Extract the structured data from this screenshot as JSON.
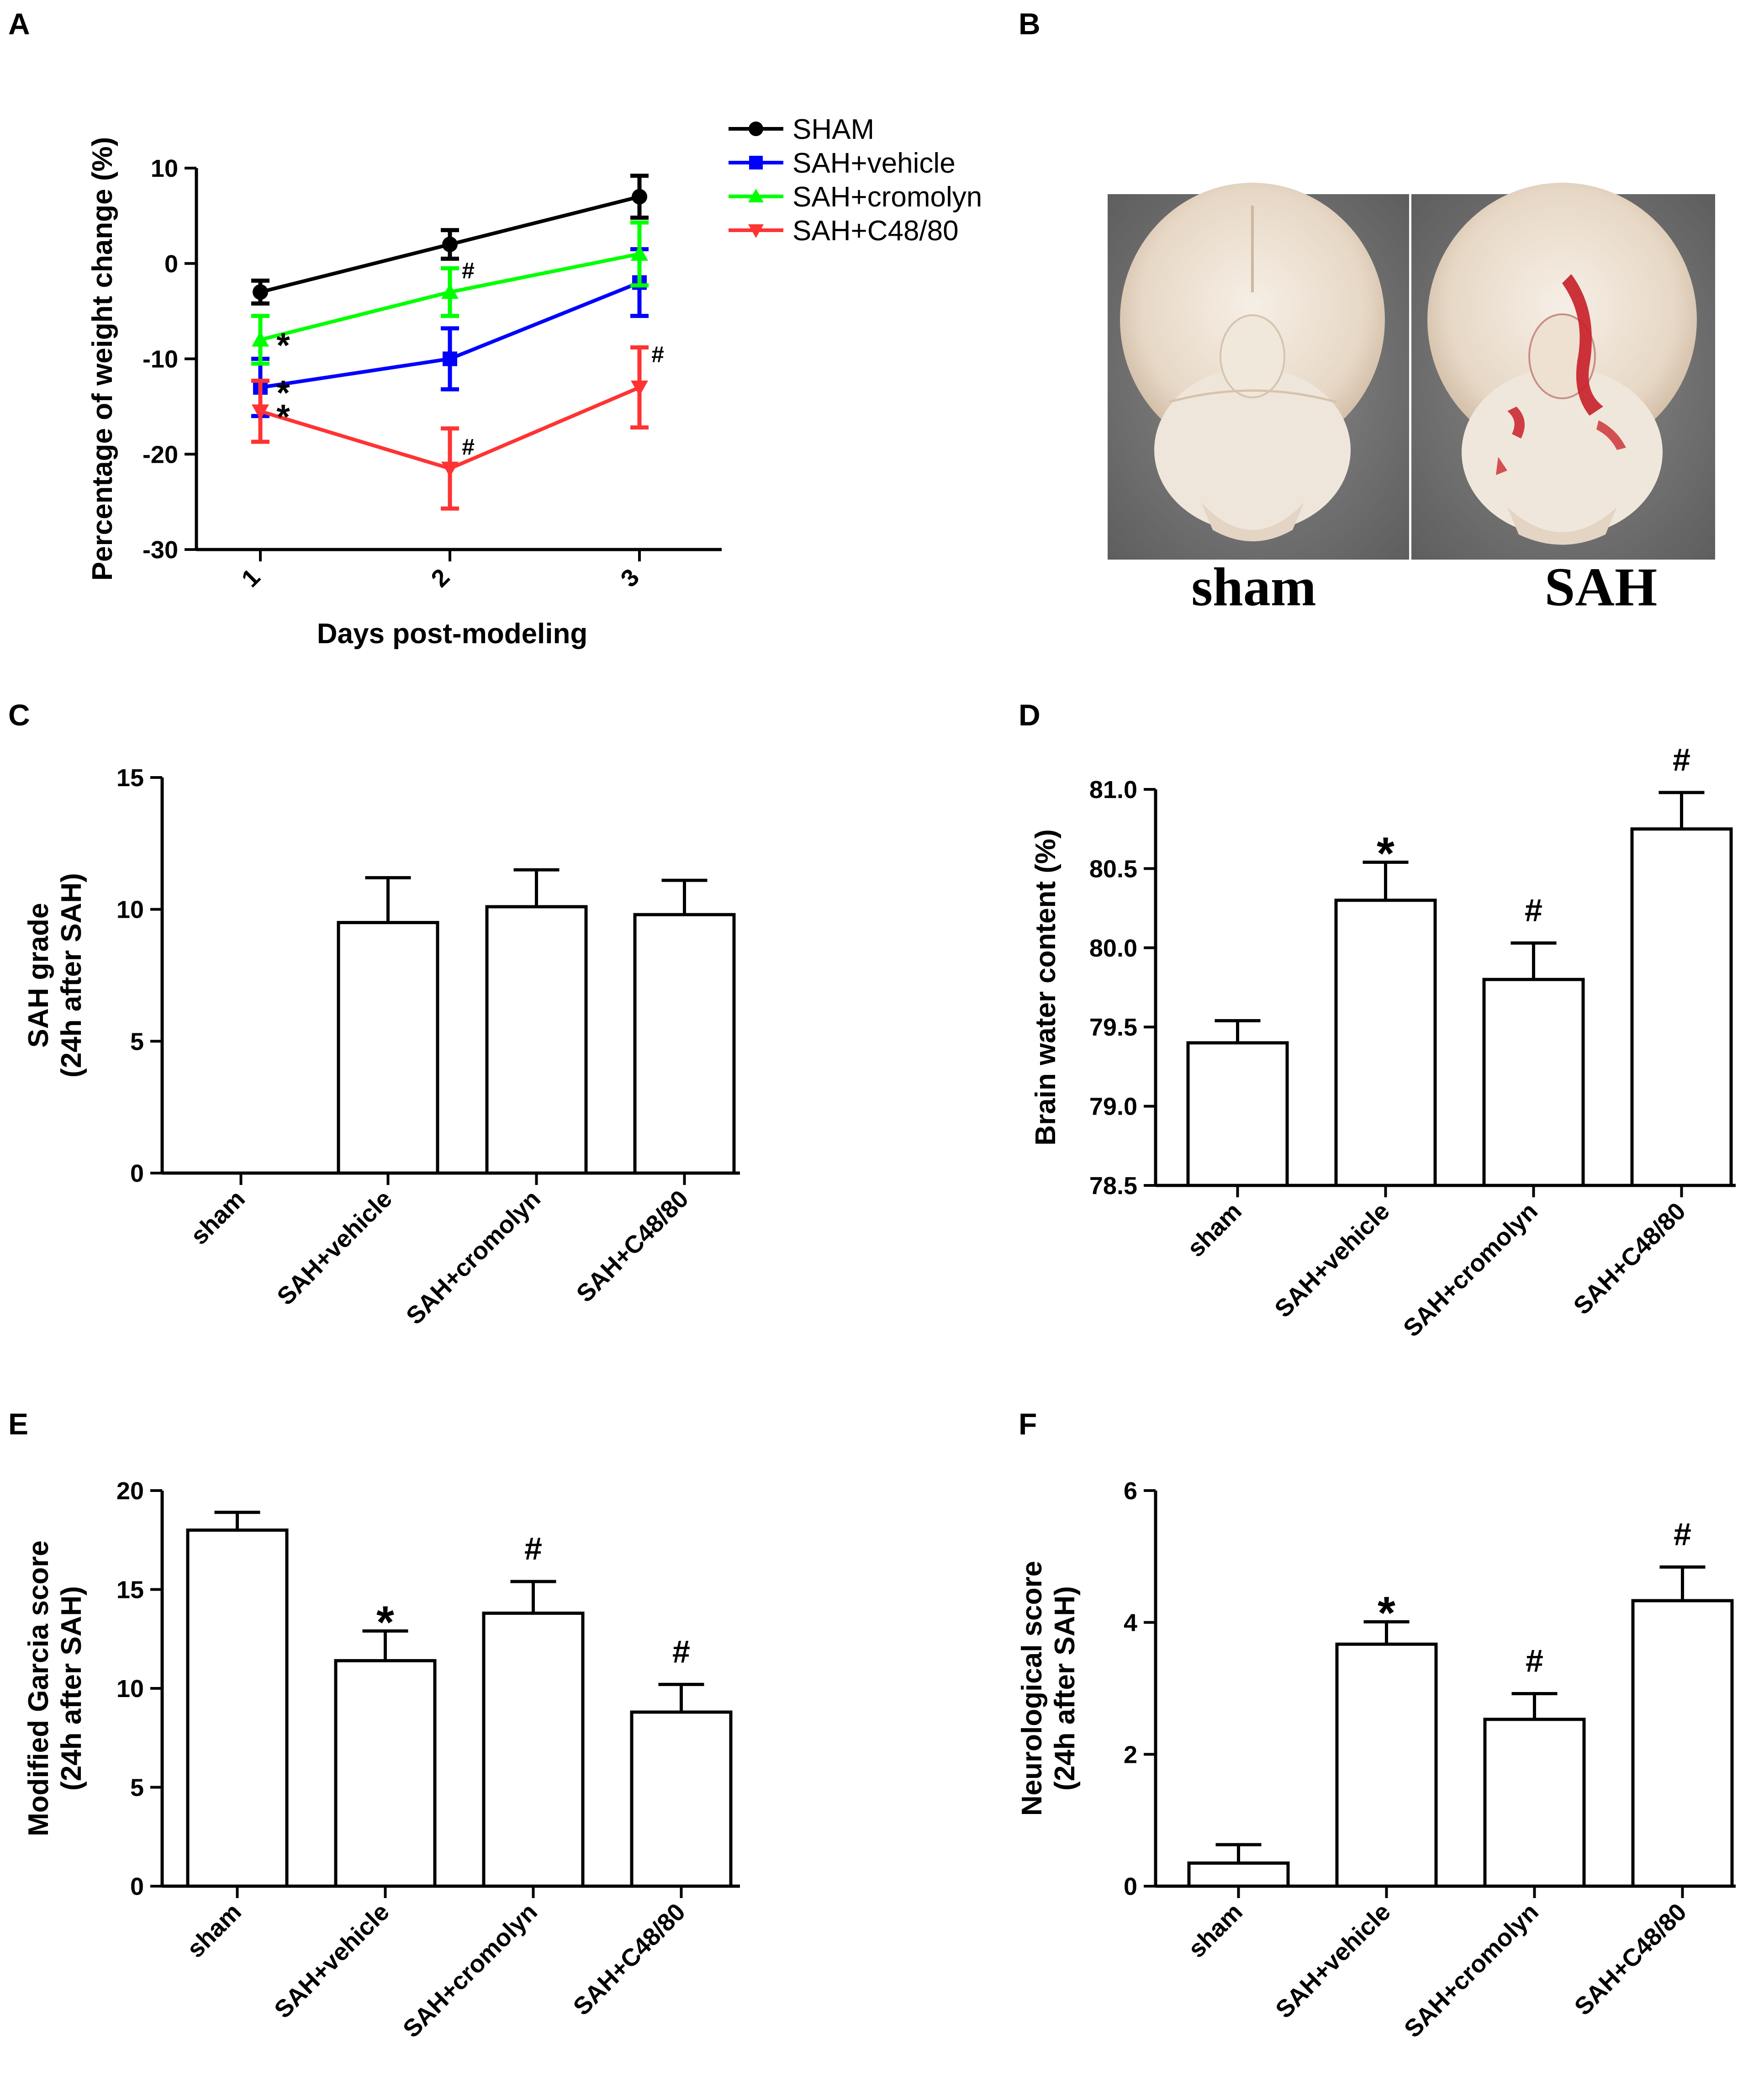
{
  "chart_data": [
    {
      "panel": "A",
      "type": "line",
      "xlabel": "Days post-modeling",
      "ylabel": "Percentage of weight change (%)",
      "categories": [
        "1",
        "2",
        "3"
      ],
      "ylim": [
        -30,
        10
      ],
      "yticks": [
        10,
        0,
        -10,
        -20,
        -30
      ],
      "grid": false,
      "legend": "top-right",
      "series": [
        {
          "name": "SHAM",
          "color": "#000000",
          "marker": "circle",
          "values": [
            -3,
            2,
            7
          ],
          "errors": [
            1.2,
            1.5,
            2.2
          ],
          "markers": [
            "",
            "",
            ""
          ]
        },
        {
          "name": "SAH+vehicle",
          "color": "#0000ff",
          "marker": "square",
          "values": [
            -13,
            -10,
            -2
          ],
          "errors": [
            3,
            3.2,
            3.5
          ],
          "markers": [
            "*",
            "",
            ""
          ]
        },
        {
          "name": "SAH+cromolyn",
          "color": "#00ff00",
          "marker": "triangle-up",
          "values": [
            -8,
            -3,
            1
          ],
          "errors": [
            2.5,
            2.5,
            3.3
          ],
          "markers": [
            "*",
            "#",
            ""
          ]
        },
        {
          "name": "SAH+C48/80",
          "color": "#ff3333",
          "marker": "triangle-down",
          "values": [
            -15.5,
            -21.5,
            -13
          ],
          "errors": [
            3.2,
            4.2,
            4.2
          ],
          "markers": [
            "*",
            "#",
            "#"
          ]
        }
      ]
    },
    {
      "panel": "C",
      "type": "bar",
      "categories": [
        "sham",
        "SAH+vehicle",
        "SAH+cromolyn",
        "SAH+C48/80"
      ],
      "values": [
        0,
        9.5,
        10.1,
        9.8
      ],
      "errors": [
        0,
        1.7,
        1.4,
        1.3
      ],
      "markers": [
        "",
        "",
        "",
        ""
      ],
      "ylabel": "SAH grade\n(24h after SAH)",
      "xlabel": "",
      "ylim": [
        0,
        15
      ],
      "yticks": [
        0,
        5,
        10,
        15
      ]
    },
    {
      "panel": "D",
      "type": "bar",
      "categories": [
        "sham",
        "SAH+vehicle",
        "SAH+cromolyn",
        "SAH+C48/80"
      ],
      "values": [
        79.4,
        80.3,
        79.8,
        80.75
      ],
      "errors": [
        0.14,
        0.24,
        0.23,
        0.23
      ],
      "markers": [
        "",
        "*",
        "#",
        "#"
      ],
      "ylabel": "Brain water content (%)",
      "xlabel": "",
      "ylim": [
        78.5,
        81.0
      ],
      "yticks": [
        78.5,
        79.0,
        79.5,
        80.0,
        80.5,
        81.0
      ]
    },
    {
      "panel": "E",
      "type": "bar",
      "categories": [
        "sham",
        "SAH+vehicle",
        "SAH+cromolyn",
        "SAH+C48/80"
      ],
      "values": [
        18,
        11.4,
        13.8,
        8.8
      ],
      "errors": [
        0.9,
        1.5,
        1.6,
        1.4
      ],
      "markers": [
        "",
        "*",
        "#",
        "#"
      ],
      "ylabel": "Modified Garcia score\n(24h after SAH)",
      "xlabel": "",
      "ylim": [
        0,
        20
      ],
      "yticks": [
        0,
        5,
        10,
        15,
        20
      ]
    },
    {
      "panel": "F",
      "type": "bar",
      "categories": [
        "sham",
        "SAH+vehicle",
        "SAH+cromolyn",
        "SAH+C48/80"
      ],
      "values": [
        0.35,
        3.67,
        2.53,
        4.33
      ],
      "errors": [
        0.28,
        0.34,
        0.39,
        0.51
      ],
      "markers": [
        "",
        "*",
        "#",
        "#"
      ],
      "ylabel": "Neurological score\n(24h after SAH)",
      "xlabel": "",
      "ylim": [
        0,
        6
      ],
      "yticks": [
        0,
        2,
        4,
        6
      ]
    }
  ],
  "panel_b": {
    "letter": "B",
    "captions": [
      "sham",
      "SAH"
    ]
  }
}
